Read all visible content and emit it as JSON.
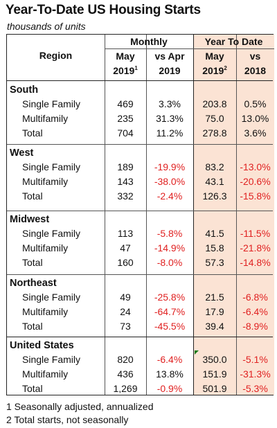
{
  "title": "Year-To-Date US Housing Starts",
  "subtitle": "thousands of units",
  "headers": {
    "region": "Region",
    "monthly": "Monthly",
    "ytd": "Year To Date",
    "col1_a": "May",
    "col1_b": "2019",
    "col1_sup": "1",
    "col2_a": "vs Apr",
    "col2_b": "2019",
    "col3_a": "May",
    "col3_b": "2019",
    "col3_sup": "2",
    "col4_a": "vs",
    "col4_b": "2018"
  },
  "sections": [
    {
      "name": "South",
      "rows": [
        {
          "label": "Single Family",
          "may": "469",
          "vs_apr": "3.3%",
          "ytd": "203.8",
          "vs_2018": "0.5%"
        },
        {
          "label": "Multifamily",
          "may": "235",
          "vs_apr": "31.3%",
          "ytd": "75.0",
          "vs_2018": "13.0%"
        },
        {
          "label": "Total",
          "may": "704",
          "vs_apr": "11.2%",
          "ytd": "278.8",
          "vs_2018": "3.6%"
        }
      ]
    },
    {
      "name": "West",
      "rows": [
        {
          "label": "Single Family",
          "may": "189",
          "vs_apr": "-19.9%",
          "ytd": "83.2",
          "vs_2018": "-13.0%"
        },
        {
          "label": "Multifamily",
          "may": "143",
          "vs_apr": "-38.0%",
          "ytd": "43.1",
          "vs_2018": "-20.6%"
        },
        {
          "label": "Total",
          "may": "332",
          "vs_apr": "-2.4%",
          "ytd": "126.3",
          "vs_2018": "-15.8%"
        }
      ]
    },
    {
      "name": "Midwest",
      "rows": [
        {
          "label": "Single Family",
          "may": "113",
          "vs_apr": "-5.8%",
          "ytd": "41.5",
          "vs_2018": "-11.5%"
        },
        {
          "label": "Multifamily",
          "may": "47",
          "vs_apr": "-14.9%",
          "ytd": "15.8",
          "vs_2018": "-21.8%"
        },
        {
          "label": "Total",
          "may": "160",
          "vs_apr": "-8.0%",
          "ytd": "57.3",
          "vs_2018": "-14.8%"
        }
      ]
    },
    {
      "name": "Northeast",
      "rows": [
        {
          "label": "Single Family",
          "may": "49",
          "vs_apr": "-25.8%",
          "ytd": "21.5",
          "vs_2018": "-6.8%"
        },
        {
          "label": "Multifamily",
          "may": "24",
          "vs_apr": "-64.7%",
          "ytd": "17.9",
          "vs_2018": "-6.4%"
        },
        {
          "label": "Total",
          "may": "73",
          "vs_apr": "-45.5%",
          "ytd": "39.4",
          "vs_2018": "-8.9%"
        }
      ]
    },
    {
      "name": "United States",
      "rows": [
        {
          "label": "Single Family",
          "may": "820",
          "vs_apr": "-6.4%",
          "ytd": "350.0",
          "vs_2018": "-5.1%"
        },
        {
          "label": "Multifamily",
          "may": "436",
          "vs_apr": "13.8%",
          "ytd": "151.9",
          "vs_2018": "-31.3%"
        },
        {
          "label": "Total",
          "may": "1,269",
          "vs_apr": "-0.9%",
          "ytd": "501.9",
          "vs_2018": "-5.3%"
        }
      ]
    }
  ],
  "footnotes": [
    "1 Seasonally adjusted, annualized",
    "2 Total starts, not seasonally"
  ],
  "colors": {
    "negative": "#e02020",
    "ytd_shade": "#fbe3d4"
  }
}
